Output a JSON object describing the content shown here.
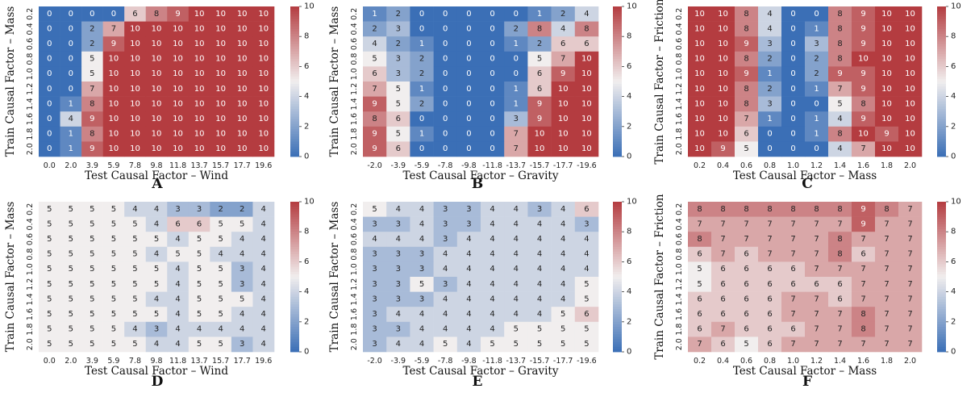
{
  "colormap": {
    "low": "#3b6fb6",
    "mid": "#f1eeee",
    "high": "#b43c40",
    "vmin": 0,
    "vmax": 10,
    "ticks": [
      0,
      2,
      4,
      6,
      8,
      10
    ]
  },
  "chart_data": [
    {
      "type": "heatmap",
      "panel": "A",
      "xlabel": "Test Causal Factor – Wind",
      "ylabel": "Train Causal Factor – Mass",
      "x_ticks": [
        "0.0",
        "2.0",
        "3.9",
        "5.9",
        "7.8",
        "9.8",
        "11.8",
        "13.7",
        "15.7",
        "17.7",
        "19.6"
      ],
      "y_ticks": [
        "0.2",
        "0.4",
        "0.6",
        "0.8",
        "1.0",
        "1.2",
        "1.4",
        "1.6",
        "1.8",
        "2.0"
      ],
      "values": [
        [
          0,
          0,
          0,
          0,
          6,
          8,
          9,
          10,
          10,
          10,
          10
        ],
        [
          0,
          0,
          2,
          7,
          10,
          10,
          10,
          10,
          10,
          10,
          10
        ],
        [
          0,
          0,
          2,
          9,
          10,
          10,
          10,
          10,
          10,
          10,
          10
        ],
        [
          0,
          0,
          5,
          10,
          10,
          10,
          10,
          10,
          10,
          10,
          10
        ],
        [
          0,
          0,
          5,
          10,
          10,
          10,
          10,
          10,
          10,
          10,
          10
        ],
        [
          0,
          0,
          7,
          10,
          10,
          10,
          10,
          10,
          10,
          10,
          10
        ],
        [
          0,
          1,
          8,
          10,
          10,
          10,
          10,
          10,
          10,
          10,
          10
        ],
        [
          0,
          4,
          9,
          10,
          10,
          10,
          10,
          10,
          10,
          10,
          10
        ],
        [
          0,
          1,
          8,
          10,
          10,
          10,
          10,
          10,
          10,
          10,
          10
        ],
        [
          0,
          1,
          9,
          10,
          10,
          10,
          10,
          10,
          10,
          10,
          10
        ]
      ]
    },
    {
      "type": "heatmap",
      "panel": "B",
      "xlabel": "Test Causal Factor – Gravity",
      "ylabel": "Train Causal Factor – Mass",
      "x_ticks": [
        "-2.0",
        "-3.9",
        "-5.9",
        "-7.8",
        "-9.8",
        "-11.8",
        "-13.7",
        "-15.7",
        "-17.7",
        "-19.6"
      ],
      "y_ticks": [
        "0.2",
        "0.4",
        "0.6",
        "0.8",
        "1.0",
        "1.2",
        "1.4",
        "1.6",
        "1.8",
        "2.0"
      ],
      "values": [
        [
          1,
          2,
          0,
          0,
          0,
          0,
          0,
          1,
          2,
          4
        ],
        [
          2,
          3,
          0,
          0,
          0,
          0,
          2,
          8,
          4,
          8
        ],
        [
          4,
          2,
          1,
          0,
          0,
          0,
          1,
          2,
          6,
          6
        ],
        [
          5,
          3,
          2,
          0,
          0,
          0,
          0,
          5,
          7,
          10
        ],
        [
          6,
          3,
          2,
          0,
          0,
          0,
          0,
          6,
          9,
          10
        ],
        [
          7,
          5,
          1,
          0,
          0,
          0,
          1,
          6,
          10,
          10
        ],
        [
          9,
          5,
          2,
          0,
          0,
          0,
          1,
          9,
          10,
          10
        ],
        [
          8,
          6,
          0,
          0,
          0,
          0,
          3,
          9,
          10,
          10
        ],
        [
          9,
          5,
          1,
          0,
          0,
          0,
          7,
          10,
          10,
          10
        ],
        [
          9,
          6,
          0,
          0,
          0,
          0,
          7,
          10,
          10,
          10
        ]
      ]
    },
    {
      "type": "heatmap",
      "panel": "C",
      "xlabel": "Test Causal Factor – Mass",
      "ylabel": "Train Causal Factor – Friction",
      "x_ticks": [
        "0.2",
        "0.4",
        "0.6",
        "0.8",
        "1.0",
        "1.2",
        "1.4",
        "1.6",
        "1.8",
        "2.0"
      ],
      "y_ticks": [
        "0.2",
        "0.4",
        "0.6",
        "0.8",
        "1.0",
        "1.2",
        "1.4",
        "1.6",
        "1.8",
        "2.0"
      ],
      "values": [
        [
          10,
          10,
          8,
          4,
          0,
          0,
          8,
          9,
          10,
          10
        ],
        [
          10,
          10,
          8,
          4,
          0,
          1,
          8,
          9,
          10,
          10
        ],
        [
          10,
          10,
          9,
          3,
          0,
          3,
          8,
          9,
          10,
          10
        ],
        [
          10,
          10,
          8,
          2,
          0,
          2,
          8,
          10,
          10,
          10
        ],
        [
          10,
          10,
          9,
          1,
          0,
          2,
          9,
          9,
          10,
          10
        ],
        [
          10,
          10,
          8,
          2,
          0,
          1,
          7,
          9,
          10,
          10
        ],
        [
          10,
          10,
          8,
          3,
          0,
          0,
          5,
          8,
          10,
          10
        ],
        [
          10,
          10,
          7,
          1,
          0,
          1,
          4,
          9,
          10,
          10
        ],
        [
          10,
          10,
          6,
          0,
          0,
          1,
          8,
          10,
          9,
          10
        ],
        [
          10,
          9,
          5,
          0,
          0,
          0,
          4,
          7,
          10,
          10
        ]
      ]
    },
    {
      "type": "heatmap",
      "panel": "D",
      "xlabel": "Test Causal Factor – Wind",
      "ylabel": "Train Causal Factor – Mass",
      "x_ticks": [
        "0.0",
        "2.0",
        "3.9",
        "5.9",
        "7.8",
        "9.8",
        "11.8",
        "13.7",
        "15.7",
        "17.7",
        "19.6"
      ],
      "y_ticks": [
        "0.2",
        "0.4",
        "0.6",
        "0.8",
        "1.0",
        "1.2",
        "1.4",
        "1.6",
        "1.8",
        "2.0"
      ],
      "values": [
        [
          5,
          5,
          5,
          5,
          4,
          4,
          3,
          3,
          2,
          2,
          4
        ],
        [
          5,
          5,
          5,
          5,
          5,
          4,
          6,
          6,
          5,
          5,
          4
        ],
        [
          5,
          5,
          5,
          5,
          5,
          5,
          4,
          5,
          5,
          4,
          4
        ],
        [
          5,
          5,
          5,
          5,
          5,
          4,
          5,
          5,
          4,
          4,
          4
        ],
        [
          5,
          5,
          5,
          5,
          5,
          5,
          4,
          5,
          5,
          3,
          4
        ],
        [
          5,
          5,
          5,
          5,
          5,
          5,
          4,
          5,
          5,
          3,
          4
        ],
        [
          5,
          5,
          5,
          5,
          5,
          4,
          4,
          5,
          5,
          5,
          4
        ],
        [
          5,
          5,
          5,
          5,
          5,
          5,
          4,
          5,
          5,
          4,
          4
        ],
        [
          5,
          5,
          5,
          5,
          4,
          3,
          4,
          4,
          4,
          4,
          4
        ],
        [
          5,
          5,
          5,
          5,
          5,
          4,
          4,
          5,
          5,
          3,
          4
        ]
      ]
    },
    {
      "type": "heatmap",
      "panel": "E",
      "xlabel": "Test Causal Factor – Gravity",
      "ylabel": "Train Causal Factor – Mass",
      "x_ticks": [
        "-2.0",
        "-3.9",
        "-5.9",
        "-7.8",
        "-9.8",
        "-11.8",
        "-13.7",
        "-15.7",
        "-17.7",
        "-19.6"
      ],
      "y_ticks": [
        "0.2",
        "0.4",
        "0.6",
        "0.8",
        "1.0",
        "1.2",
        "1.4",
        "1.6",
        "1.8",
        "2.0"
      ],
      "values": [
        [
          5,
          4,
          4,
          3,
          3,
          4,
          4,
          3,
          4,
          6
        ],
        [
          3,
          3,
          4,
          3,
          3,
          4,
          4,
          4,
          4,
          3
        ],
        [
          4,
          4,
          4,
          3,
          4,
          4,
          4,
          4,
          4,
          4
        ],
        [
          3,
          3,
          3,
          4,
          4,
          4,
          4,
          4,
          4,
          4
        ],
        [
          3,
          3,
          3,
          4,
          4,
          4,
          4,
          4,
          4,
          4
        ],
        [
          3,
          3,
          5,
          3,
          4,
          4,
          4,
          4,
          4,
          5
        ],
        [
          3,
          3,
          3,
          4,
          4,
          4,
          4,
          4,
          4,
          5
        ],
        [
          3,
          4,
          4,
          4,
          4,
          4,
          4,
          4,
          5,
          6
        ],
        [
          3,
          3,
          4,
          4,
          4,
          4,
          5,
          5,
          5,
          5
        ],
        [
          3,
          4,
          4,
          5,
          4,
          5,
          5,
          5,
          5,
          5
        ]
      ]
    },
    {
      "type": "heatmap",
      "panel": "F",
      "xlabel": "Test Causal Factor – Mass",
      "ylabel": "Train Causal Factor – Friction",
      "x_ticks": [
        "0.2",
        "0.4",
        "0.6",
        "0.8",
        "1.0",
        "1.2",
        "1.4",
        "1.6",
        "1.8",
        "2.0"
      ],
      "y_ticks": [
        "0.2",
        "0.4",
        "0.6",
        "0.8",
        "1.0",
        "1.2",
        "1.4",
        "1.6",
        "1.8",
        "2.0"
      ],
      "values": [
        [
          8,
          8,
          8,
          8,
          8,
          8,
          8,
          9,
          8,
          7
        ],
        [
          7,
          7,
          7,
          7,
          7,
          7,
          7,
          9,
          7,
          7
        ],
        [
          8,
          7,
          7,
          7,
          7,
          7,
          8,
          7,
          7,
          7
        ],
        [
          6,
          7,
          6,
          7,
          7,
          7,
          8,
          6,
          7,
          7
        ],
        [
          5,
          6,
          6,
          6,
          6,
          7,
          7,
          7,
          7,
          7
        ],
        [
          5,
          6,
          6,
          6,
          6,
          6,
          6,
          7,
          7,
          7
        ],
        [
          6,
          6,
          6,
          6,
          7,
          7,
          6,
          7,
          7,
          7
        ],
        [
          6,
          6,
          6,
          6,
          7,
          7,
          7,
          8,
          7,
          7
        ],
        [
          6,
          7,
          6,
          6,
          6,
          7,
          7,
          8,
          7,
          7
        ],
        [
          7,
          6,
          5,
          6,
          7,
          7,
          7,
          7,
          7,
          7
        ]
      ]
    }
  ]
}
